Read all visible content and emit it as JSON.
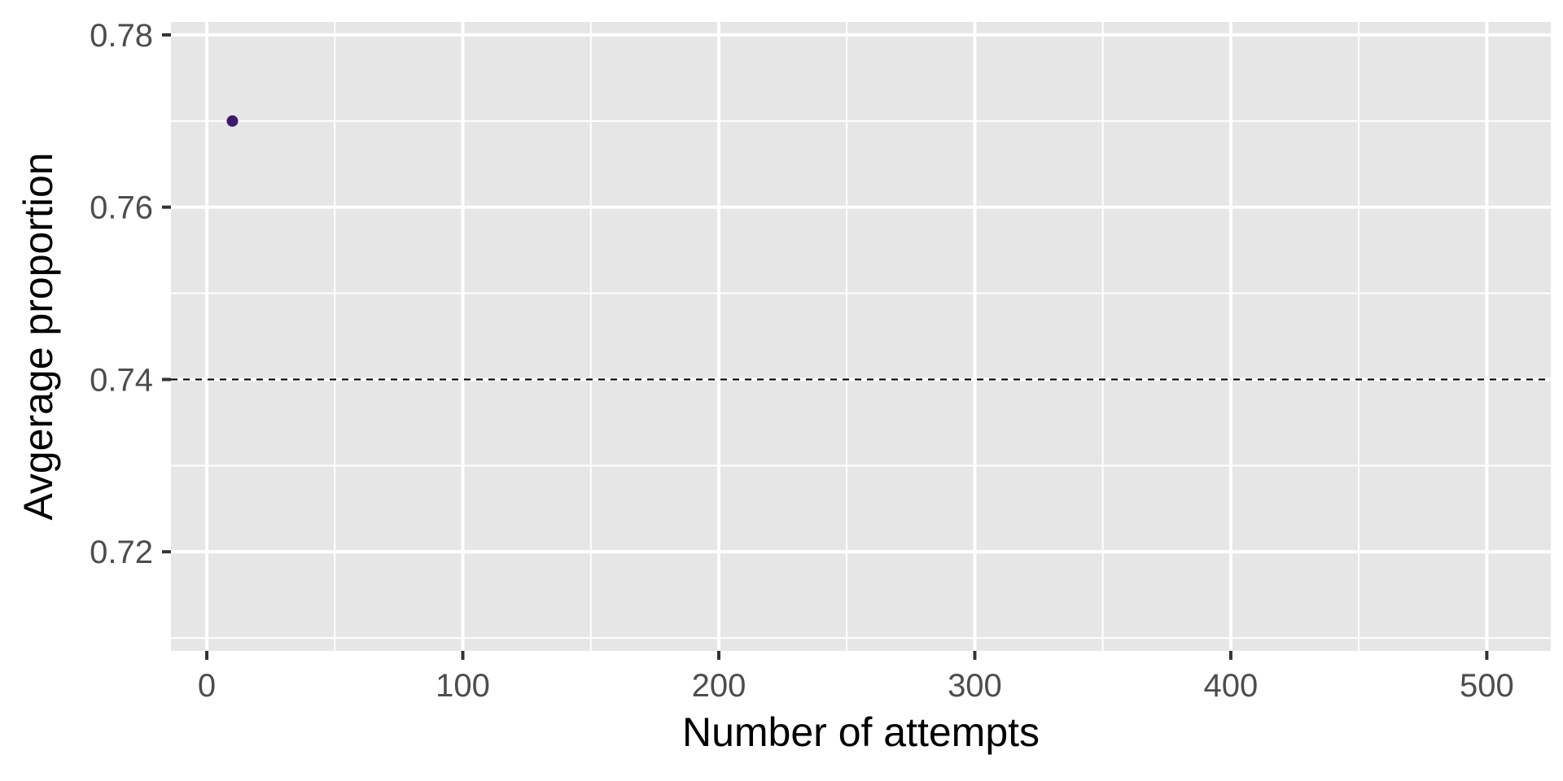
{
  "chart_data": {
    "type": "scatter",
    "title": "",
    "xlabel": "Number of attempts",
    "ylabel": "Avgerage proportion",
    "xlim": [
      -14,
      525
    ],
    "ylim": [
      0.7085,
      0.7815
    ],
    "x_ticks": [
      0,
      100,
      200,
      300,
      400,
      500
    ],
    "x_tick_labels": [
      "0",
      "100",
      "200",
      "300",
      "400",
      "500"
    ],
    "y_ticks": [
      0.72,
      0.74,
      0.76,
      0.78
    ],
    "y_tick_labels": [
      "0.72",
      "0.74",
      "0.76",
      "0.78"
    ],
    "grid": true,
    "points": [
      {
        "x": 10,
        "y": 0.77
      }
    ],
    "reference_line": {
      "y": 0.74,
      "style": "dashed"
    },
    "colors": {
      "panel_background": "#e6e6e6",
      "grid": "#ffffff",
      "point": "#3b1a6e",
      "reference_line": "#000000",
      "tick_text": "#4d4d4d"
    }
  }
}
